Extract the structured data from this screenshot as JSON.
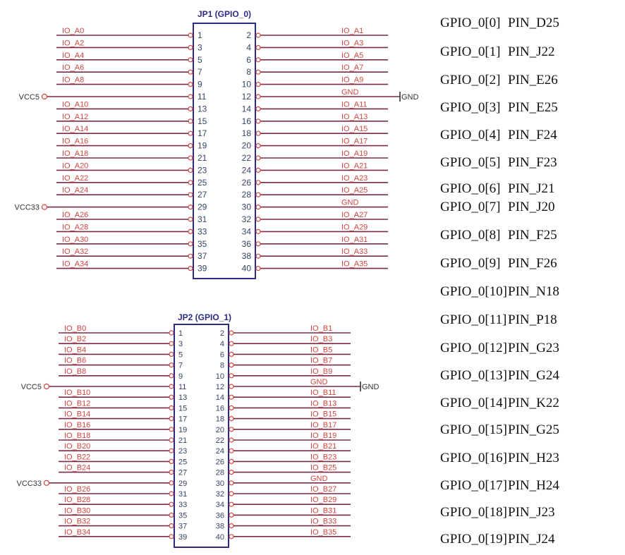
{
  "colors": {
    "wire": "#7a2a45",
    "label": "#d0453f",
    "box": "#2b2b86",
    "pin_number": "#334466",
    "power": "#333333"
  },
  "connectors": [
    {
      "title": "JP1 (GPIO_0)",
      "left_labels": [
        "IO_A0",
        "IO_A2",
        "IO_A4",
        "IO_A6",
        "IO_A8",
        "",
        "IO_A10",
        "IO_A12",
        "IO_A14",
        "IO_A16",
        "IO_A18",
        "IO_A20",
        "IO_A22",
        "IO_A24",
        "",
        "IO_A26",
        "IO_A28",
        "IO_A30",
        "IO_A32",
        "IO_A34"
      ],
      "right_labels": [
        "IO_A1",
        "IO_A3",
        "IO_A5",
        "IO_A7",
        "IO_A9",
        "GND",
        "IO_A11",
        "IO_A13",
        "IO_A15",
        "IO_A17",
        "IO_A19",
        "IO_A21",
        "IO_A23",
        "IO_A25",
        "GND",
        "IO_A27",
        "IO_A29",
        "IO_A31",
        "IO_A33",
        "IO_A35"
      ],
      "vcc5": "VCC5",
      "vcc33": "VCC33",
      "gnd": "GND"
    },
    {
      "title": "JP2 (GPIO_1)",
      "left_labels": [
        "IO_B0",
        "IO_B2",
        "IO_B4",
        "IO_B6",
        "IO_B8",
        "",
        "IO_B10",
        "IO_B12",
        "IO_B14",
        "IO_B16",
        "IO_B18",
        "IO_B20",
        "IO_B22",
        "IO_B24",
        "",
        "IO_B26",
        "IO_B28",
        "IO_B30",
        "IO_B32",
        "IO_B34"
      ],
      "right_labels": [
        "IO_B1",
        "IO_B3",
        "IO_B5",
        "IO_B7",
        "IO_B9",
        "GND",
        "IO_B11",
        "IO_B13",
        "IO_B15",
        "IO_B17",
        "IO_B19",
        "IO_B21",
        "IO_B23",
        "IO_B25",
        "GND",
        "IO_B27",
        "IO_B29",
        "IO_B31",
        "IO_B33",
        "IO_B35"
      ],
      "vcc5": "VCC5",
      "vcc33": "VCC33",
      "gnd": "GND"
    }
  ],
  "pin_map": [
    {
      "gpio": "GPIO_0[0]",
      "pin": "PIN_D25"
    },
    {
      "gpio": "GPIO_0[1]",
      "pin": "PIN_J22"
    },
    {
      "gpio": "GPIO_0[2]",
      "pin": "PIN_E26"
    },
    {
      "gpio": "GPIO_0[3]",
      "pin": "PIN_E25"
    },
    {
      "gpio": "GPIO_0[4]",
      "pin": "PIN_F24"
    },
    {
      "gpio": "GPIO_0[5]",
      "pin": "PIN_F23"
    },
    {
      "gpio": "GPIO_0[6]",
      "pin": "PIN_J21"
    },
    {
      "gpio": "GPIO_0[7]",
      "pin": "PIN_J20"
    },
    {
      "gpio": "GPIO_0[8]",
      "pin": "PIN_F25"
    },
    {
      "gpio": "GPIO_0[9]",
      "pin": "PIN_F26"
    },
    {
      "gpio": "GPIO_0[10]",
      "pin": "PIN_N18"
    },
    {
      "gpio": "GPIO_0[11]",
      "pin": "PIN_P18"
    },
    {
      "gpio": "GPIO_0[12]",
      "pin": "PIN_G23"
    },
    {
      "gpio": "GPIO_0[13]",
      "pin": "PIN_G24"
    },
    {
      "gpio": "GPIO_0[14]",
      "pin": "PIN_K22"
    },
    {
      "gpio": "GPIO_0[15]",
      "pin": "PIN_G25"
    },
    {
      "gpio": "GPIO_0[16]",
      "pin": "PIN_H23"
    },
    {
      "gpio": "GPIO_0[17]",
      "pin": "PIN_H24"
    },
    {
      "gpio": "GPIO_0[18]",
      "pin": "PIN_J23"
    },
    {
      "gpio": "GPIO_0[19]",
      "pin": "PIN_J24"
    }
  ]
}
